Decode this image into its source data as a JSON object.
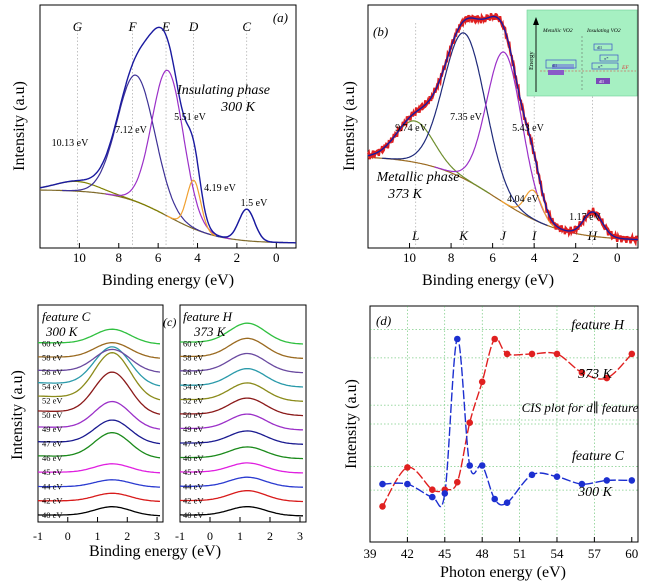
{
  "chart_data": [
    {
      "panel_label": "(a)",
      "type": "line",
      "xlabel": "Binding energy (eV)",
      "ylabel": "Intensity (a.u)",
      "xlim": [
        12,
        -1
      ],
      "xticks": [
        10,
        8,
        6,
        4,
        2,
        0
      ],
      "ylim": [
        0,
        1
      ],
      "annotation_lines": [
        "Insulating phase",
        "300 K"
      ],
      "features": [
        {
          "label": "G",
          "x": 10.1
        },
        {
          "label": "F",
          "x": 7.3
        },
        {
          "label": "E",
          "x": 5.6
        },
        {
          "label": "D",
          "x": 4.2
        },
        {
          "label": "C",
          "x": 1.5
        }
      ],
      "peaks": [
        {
          "label": "10.13 eV",
          "center": 10.13,
          "height": 0.04,
          "width": 1.1,
          "color": "#7f7f00"
        },
        {
          "label": "7.12 eV",
          "center": 7.12,
          "height": 0.52,
          "width": 0.95,
          "color": "#3d3196"
        },
        {
          "label": "5.51 eV",
          "center": 5.51,
          "height": 0.6,
          "width": 0.8,
          "color": "#9b30c8"
        },
        {
          "label": "4.19 eV",
          "center": 4.19,
          "height": 0.2,
          "width": 0.35,
          "color": "#f0a030"
        },
        {
          "label": "1.5 eV",
          "center": 1.5,
          "height": 0.13,
          "width": 0.4,
          "color": "#2b3a9e"
        }
      ],
      "background": {
        "low": 0.02,
        "high": 0.24,
        "mid": 5.5,
        "step_width": 1.3,
        "color": "#7f6a2a"
      },
      "envelope_color": "#1a1aa0"
    },
    {
      "panel_label": "(b)",
      "type": "line",
      "xlabel": "Binding energy (eV)",
      "ylabel": "Intensity (a.u)",
      "xlim": [
        12,
        -1
      ],
      "xticks": [
        10,
        8,
        6,
        4,
        2,
        0
      ],
      "ylim": [
        0,
        1
      ],
      "annotation_lines": [
        "Metallic phase",
        "373 K"
      ],
      "features": [
        {
          "label": "L",
          "x": 9.7
        },
        {
          "label": "K",
          "x": 7.4
        },
        {
          "label": "J",
          "x": 5.5
        },
        {
          "label": "I",
          "x": 4.0
        },
        {
          "label": "H",
          "x": 1.2
        }
      ],
      "peaks": [
        {
          "label": "9.74 eV",
          "center": 9.74,
          "height": 0.17,
          "width": 0.9,
          "color": "#6f8f2f"
        },
        {
          "label": "7.35 eV",
          "center": 7.35,
          "height": 0.6,
          "width": 1.0,
          "color": "#1f2a7a"
        },
        {
          "label": "5.43 eV",
          "center": 5.43,
          "height": 0.62,
          "width": 0.85,
          "color": "#9b30c8"
        },
        {
          "label": "4.04 eV",
          "center": 4.04,
          "height": 0.12,
          "width": 0.4,
          "color": "#f0a030"
        },
        {
          "label": "1.17 eV",
          "center": 1.17,
          "height": 0.1,
          "width": 0.45,
          "color": "#2b3a9e"
        }
      ],
      "background": {
        "low": 0.03,
        "high": 0.38,
        "mid": 5.8,
        "step_width": 1.6,
        "color": "#9a6a20"
      },
      "envelope_color": "#1a1aa0",
      "data_color": "#e02020",
      "inset": {
        "axis_label": "Energy",
        "left_title": "Metallic VO2",
        "right_title": "Insulating VO2",
        "fermi_label": "EF",
        "level_labels": [
          "dll",
          "π*",
          "σ*",
          "dll",
          "dll"
        ]
      }
    },
    {
      "panel_label": "(c)",
      "type": "line",
      "xlabel": "Binding energy (eV)",
      "ylabel": "Intensity (a.u)",
      "subplots": [
        {
          "title": "feature C",
          "annotation": "300 K",
          "xlim": [
            -1,
            3.2
          ],
          "xticks": [
            -1,
            0,
            1,
            2,
            3
          ],
          "peak_center": 1.5,
          "series": [
            {
              "name": "40 eV",
              "color": "#000000",
              "amp": 0.55
            },
            {
              "name": "42 eV",
              "color": "#d81b1b",
              "amp": 0.5
            },
            {
              "name": "44 eV",
              "color": "#2b3bd0",
              "amp": 0.45
            },
            {
              "name": "45 eV",
              "color": "#e020e0",
              "amp": 0.55
            },
            {
              "name": "46 eV",
              "color": "#1b8a1b",
              "amp": 1.55
            },
            {
              "name": "47 eV",
              "color": "#1a1a90",
              "amp": 1.45
            },
            {
              "name": "49 eV",
              "color": "#9b30c8",
              "amp": 1.7
            },
            {
              "name": "50 eV",
              "color": "#8b1a1a",
              "amp": 2.6
            },
            {
              "name": "52 eV",
              "color": "#8b8b1b",
              "amp": 2.9
            },
            {
              "name": "54 eV",
              "color": "#2a9aaa",
              "amp": 2.4
            },
            {
              "name": "56 eV",
              "color": "#6a4aa0",
              "amp": 1.4
            },
            {
              "name": "58 eV",
              "color": "#9a6a20",
              "amp": 0.95
            },
            {
              "name": "60 eV",
              "color": "#30c040",
              "amp": 0.9
            }
          ]
        },
        {
          "title": "feature H",
          "annotation": "373 K",
          "xlim": [
            -1,
            3.2
          ],
          "xticks": [
            -1,
            0,
            1,
            2,
            3
          ],
          "peak_center": 1.25,
          "series": [
            {
              "name": "40 eV",
              "color": "#000000",
              "amp": 0.55
            },
            {
              "name": "42 eV",
              "color": "#d81b1b",
              "amp": 0.65
            },
            {
              "name": "44 eV",
              "color": "#2b3bd0",
              "amp": 0.6
            },
            {
              "name": "45 eV",
              "color": "#e020e0",
              "amp": 0.6
            },
            {
              "name": "46 eV",
              "color": "#1b8a1b",
              "amp": 0.7
            },
            {
              "name": "47 eV",
              "color": "#1a1a90",
              "amp": 0.8
            },
            {
              "name": "49 eV",
              "color": "#9b30c8",
              "amp": 0.95
            },
            {
              "name": "50 eV",
              "color": "#8b1a1a",
              "amp": 1.05
            },
            {
              "name": "52 eV",
              "color": "#8b8b1b",
              "amp": 1.1
            },
            {
              "name": "54 eV",
              "color": "#2a9aaa",
              "amp": 1.1
            },
            {
              "name": "56 eV",
              "color": "#6a4aa0",
              "amp": 1.15
            },
            {
              "name": "58 eV",
              "color": "#9a6a20",
              "amp": 1.2
            },
            {
              "name": "60 eV",
              "color": "#30c040",
              "amp": 1.25
            }
          ]
        }
      ]
    },
    {
      "panel_label": "(d)",
      "type": "line",
      "title": "CIS plot for d∥ feature",
      "xlabel": "Photon energy (eV)",
      "ylabel": "Intensity (a.u)",
      "xlim": [
        39,
        60.5
      ],
      "xticks": [
        39,
        42,
        45,
        48,
        51,
        54,
        57,
        60
      ],
      "ylim": [
        0,
        1
      ],
      "series": [
        {
          "name": "feature H",
          "annotation": "373 K",
          "color": "#e02020",
          "x": [
            40,
            42,
            44,
            45,
            46,
            47,
            48,
            49,
            50,
            52,
            54,
            56,
            58,
            60
          ],
          "y": [
            0.03,
            0.24,
            0.12,
            0.12,
            0.16,
            0.48,
            0.7,
            0.93,
            0.85,
            0.85,
            0.85,
            0.75,
            0.72,
            0.85
          ]
        },
        {
          "name": "feature C",
          "annotation": "300 K",
          "color": "#1c2fd0",
          "x": [
            40,
            42,
            44,
            45,
            46,
            47,
            48,
            49,
            50,
            52,
            54,
            56,
            58,
            60
          ],
          "y": [
            0.15,
            0.15,
            0.08,
            0.1,
            0.93,
            0.25,
            0.25,
            0.07,
            0.05,
            0.2,
            0.19,
            0.15,
            0.17,
            0.17
          ]
        }
      ]
    }
  ]
}
